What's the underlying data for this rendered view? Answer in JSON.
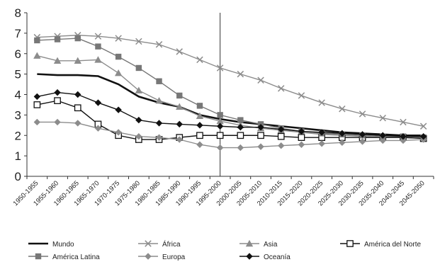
{
  "chart_data": {
    "type": "line",
    "categories": [
      "1950-1955",
      "1955-1960",
      "1960-1965",
      "1965-1970",
      "1970-1975",
      "1975-1980",
      "1980-1985",
      "1985-1990",
      "1990-1995",
      "1995-2000",
      "2000-2005",
      "2005-2010",
      "2010-2015",
      "2015-2020",
      "2020-2025",
      "2025-2030",
      "2030-2035",
      "2035-2040",
      "2040-2045",
      "2045-2050"
    ],
    "ylim": [
      0,
      8
    ],
    "yticks": [
      "0",
      "1",
      "2",
      "3",
      "4",
      "5",
      "6",
      "7",
      "8"
    ],
    "grid": false,
    "reference_line_category": "1995-2000",
    "legend_position": "bottom",
    "series": [
      {
        "name": "Mundo",
        "marker": "none",
        "color": "#111111",
        "values": [
          5.0,
          4.95,
          4.95,
          4.9,
          4.5,
          3.9,
          3.6,
          3.4,
          3.0,
          2.8,
          2.65,
          2.55,
          2.45,
          2.35,
          2.25,
          2.15,
          2.1,
          2.05,
          2.0,
          2.0
        ]
      },
      {
        "name": "África",
        "marker": "x",
        "color": "#8c8c8c",
        "values": [
          6.8,
          6.85,
          6.9,
          6.85,
          6.75,
          6.6,
          6.45,
          6.1,
          5.7,
          5.3,
          5.0,
          4.7,
          4.3,
          3.95,
          3.6,
          3.3,
          3.05,
          2.85,
          2.65,
          2.45
        ]
      },
      {
        "name": "Asia",
        "marker": "triangle",
        "color": "#8c8c8c",
        "values": [
          5.9,
          5.65,
          5.65,
          5.7,
          5.05,
          4.2,
          3.7,
          3.4,
          2.95,
          2.7,
          2.5,
          2.35,
          2.25,
          2.15,
          2.05,
          2.0,
          1.95,
          1.9,
          1.9,
          1.85
        ]
      },
      {
        "name": "América del Norte",
        "marker": "open-square",
        "color": "#111111",
        "values": [
          3.5,
          3.7,
          3.35,
          2.55,
          2.0,
          1.8,
          1.8,
          1.9,
          2.0,
          2.0,
          2.0,
          2.0,
          1.95,
          1.9,
          1.9,
          1.9,
          1.9,
          1.9,
          1.9,
          1.85
        ]
      },
      {
        "name": "América Latina",
        "marker": "square",
        "color": "#777777",
        "values": [
          6.65,
          6.7,
          6.75,
          6.35,
          5.85,
          5.3,
          4.65,
          3.95,
          3.45,
          3.0,
          2.75,
          2.55,
          2.35,
          2.2,
          2.1,
          2.05,
          2.0,
          1.95,
          1.95,
          1.9
        ]
      },
      {
        "name": "Europa",
        "marker": "diamond",
        "color": "#8c8c8c",
        "values": [
          2.65,
          2.65,
          2.6,
          2.35,
          2.15,
          1.95,
          1.9,
          1.8,
          1.55,
          1.4,
          1.4,
          1.45,
          1.5,
          1.55,
          1.6,
          1.65,
          1.7,
          1.75,
          1.75,
          1.8
        ]
      },
      {
        "name": "Oceanía",
        "marker": "filled-diamond",
        "color": "#111111",
        "values": [
          3.9,
          4.1,
          4.0,
          3.6,
          3.25,
          2.75,
          2.6,
          2.55,
          2.5,
          2.45,
          2.4,
          2.4,
          2.3,
          2.2,
          2.15,
          2.1,
          2.05,
          2.0,
          1.95,
          1.95
        ]
      }
    ]
  }
}
